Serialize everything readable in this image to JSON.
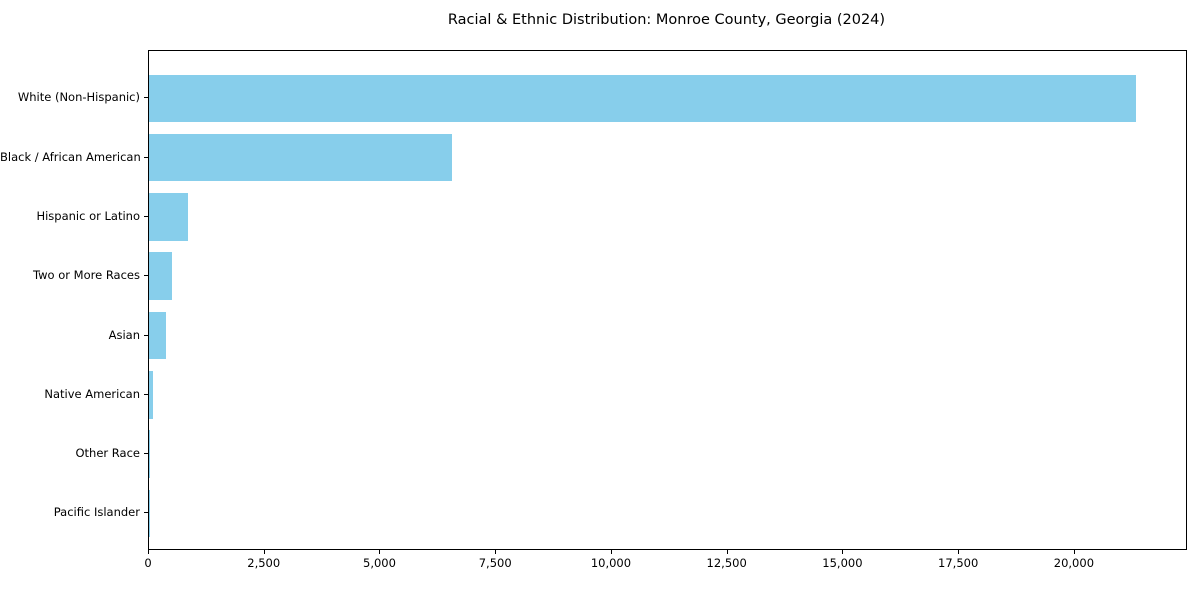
{
  "chart_data": {
    "type": "bar",
    "orientation": "horizontal",
    "title": "Racial & Ethnic Distribution: Monroe County, Georgia (2024)",
    "categories": [
      "White (Non-Hispanic)",
      "Black / African American",
      "Hispanic or Latino",
      "Two or More Races",
      "Asian",
      "Native American",
      "Other Race",
      "Pacific Islander"
    ],
    "values": [
      21330,
      6550,
      850,
      495,
      365,
      80,
      25,
      10
    ],
    "xlabel": "",
    "ylabel": "",
    "xlim": [
      0,
      22400
    ],
    "x_ticks": [
      0,
      2500,
      5000,
      7500,
      10000,
      12500,
      15000,
      17500,
      20000
    ],
    "x_tick_labels": [
      "0",
      "2,500",
      "5,000",
      "7,500",
      "10,000",
      "12,500",
      "15,000",
      "17,500",
      "20,000"
    ],
    "bar_color": "#87CEEB",
    "frame_color": "#000000",
    "background_color": "#ffffff",
    "grid": false,
    "legend": "none"
  }
}
